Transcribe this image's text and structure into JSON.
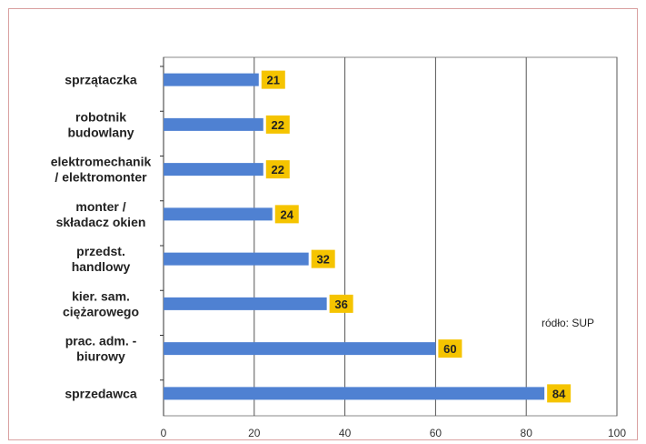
{
  "chart_data": {
    "type": "bar",
    "orientation": "horizontal",
    "categories": [
      [
        "sprzątaczka"
      ],
      [
        "robotnik",
        "budowlany"
      ],
      [
        "elektromechanik",
        "/ elektromonter"
      ],
      [
        "monter /",
        "składacz okien"
      ],
      [
        "przedst.",
        "handlowy"
      ],
      [
        "kier. sam.",
        "ciężarowego"
      ],
      [
        "prac. adm. -",
        "biurowy"
      ],
      [
        "sprzedawca"
      ]
    ],
    "values": [
      21,
      22,
      22,
      24,
      32,
      36,
      60,
      84
    ],
    "xlim": [
      0,
      100
    ],
    "xticks": [
      0,
      20,
      40,
      60,
      80,
      100
    ],
    "grid": "vertical",
    "bar_color": "#4f81d2",
    "label_bg_color": "#f5c400",
    "note": "ródło: SUP"
  }
}
